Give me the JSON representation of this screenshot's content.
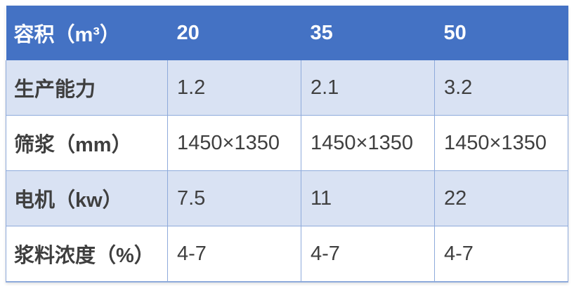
{
  "table": {
    "header": {
      "label": "容积（m³）",
      "cols": [
        "20",
        "35",
        "50"
      ]
    },
    "rows": [
      {
        "label": "生产能力",
        "values": [
          "1.2",
          "2.1",
          "3.2"
        ]
      },
      {
        "label": "筛浆（mm）",
        "values": [
          "1450×1350",
          "1450×1350",
          "1450×1350"
        ]
      },
      {
        "label": "电机（kw）",
        "values": [
          "7.5",
          "11",
          "22"
        ]
      },
      {
        "label": "浆料浓度（%）",
        "values": [
          "4-7",
          "4-7",
          "4-7"
        ]
      }
    ]
  },
  "colors": {
    "header_bg": "#4472C4",
    "header_text": "#FFFFFF",
    "band_bg": "#D9E2F3",
    "plain_bg": "#FFFFFF",
    "border": "#8EAADB",
    "body_text": "#3F3F3F"
  }
}
